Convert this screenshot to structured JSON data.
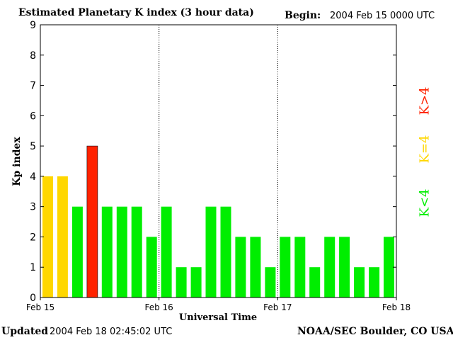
{
  "header": {
    "title": "Estimated Planetary K index (3 hour data)",
    "begin_label": "Begin:",
    "begin_value": "2004 Feb 15 0000 UTC"
  },
  "footer": {
    "updated_label": "Updated",
    "updated_value": "2004 Feb 18 02:45:02 UTC",
    "credit": "NOAA/SEC Boulder, CO USA"
  },
  "legend": {
    "high": {
      "label": "K>4",
      "color": "#ff2200"
    },
    "equal": {
      "label": "K=4",
      "color": "#ffd700"
    },
    "low": {
      "label": "K<4",
      "color": "#00ee00"
    }
  },
  "chart_data": {
    "type": "bar",
    "title": "Estimated Planetary K index (3 hour data)",
    "xlabel": "Universal Time",
    "ylabel": "Kp index",
    "ylim": [
      0,
      9
    ],
    "yticks": [
      0,
      1,
      2,
      3,
      4,
      5,
      6,
      7,
      8,
      9
    ],
    "xtick_labels": [
      "Feb 15",
      "Feb 16",
      "Feb 17",
      "Feb 18"
    ],
    "interval_hours": 3,
    "values": [
      4,
      4,
      3,
      5,
      3,
      3,
      3,
      2,
      3,
      1,
      1,
      3,
      3,
      2,
      2,
      1,
      2,
      2,
      1,
      2,
      2,
      1,
      1,
      2
    ]
  }
}
